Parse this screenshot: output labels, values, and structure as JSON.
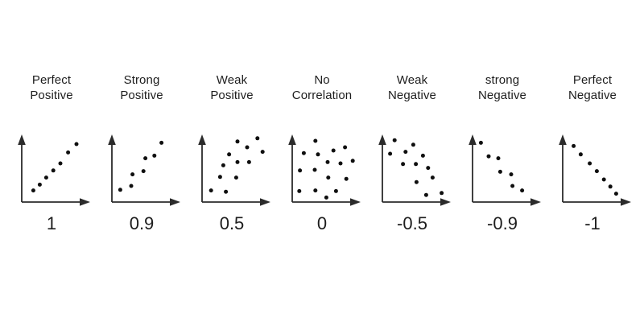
{
  "figure": {
    "background_color": "#ffffff",
    "text_color": "#1d1d1d",
    "axis_color": "#2b2b2b",
    "dot_color": "#0f0f0f",
    "description_units": "point coordinates are relative 0-100 units from each plot's axis origin (x right, y up); no tick labels or gridlines are shown"
  },
  "chart_data": [
    {
      "type": "scatter",
      "title": "Perfect Positive",
      "title_lines": [
        "Perfect",
        "Positive"
      ],
      "coefficient_label": "1",
      "correlation": 1,
      "x_range": [
        0,
        100
      ],
      "y_range": [
        0,
        100
      ],
      "points": [
        [
          18,
          18
        ],
        [
          28,
          27
        ],
        [
          38,
          38
        ],
        [
          49,
          49
        ],
        [
          60,
          60
        ],
        [
          72,
          77
        ],
        [
          85,
          90
        ]
      ]
    },
    {
      "type": "scatter",
      "title": "Strong Positive",
      "title_lines": [
        "Strong",
        "Positive"
      ],
      "coefficient_label": "0.9",
      "correlation": 0.9,
      "x_range": [
        0,
        100
      ],
      "y_range": [
        0,
        100
      ],
      "points": [
        [
          13,
          19
        ],
        [
          30,
          25
        ],
        [
          32,
          43
        ],
        [
          49,
          48
        ],
        [
          52,
          68
        ],
        [
          66,
          72
        ],
        [
          77,
          92
        ]
      ]
    },
    {
      "type": "scatter",
      "title": "Weak Positive",
      "title_lines": [
        "Weak",
        "Positive"
      ],
      "coefficient_label": "0.5",
      "correlation": 0.5,
      "x_range": [
        0,
        100
      ],
      "y_range": [
        0,
        100
      ],
      "points": [
        [
          14,
          18
        ],
        [
          37,
          16
        ],
        [
          28,
          39
        ],
        [
          33,
          57
        ],
        [
          53,
          38
        ],
        [
          42,
          74
        ],
        [
          55,
          62
        ],
        [
          73,
          62
        ],
        [
          55,
          94
        ],
        [
          70,
          85
        ],
        [
          86,
          99
        ],
        [
          94,
          78
        ]
      ]
    },
    {
      "type": "scatter",
      "title": "No Correlation",
      "title_lines": [
        "No",
        "Correlation"
      ],
      "coefficient_label": "0",
      "correlation": 0,
      "x_range": [
        0,
        100
      ],
      "y_range": [
        0,
        100
      ],
      "points": [
        [
          36,
          95
        ],
        [
          18,
          76
        ],
        [
          64,
          80
        ],
        [
          82,
          85
        ],
        [
          40,
          74
        ],
        [
          55,
          62
        ],
        [
          75,
          60
        ],
        [
          94,
          64
        ],
        [
          12,
          49
        ],
        [
          35,
          50
        ],
        [
          56,
          38
        ],
        [
          84,
          36
        ],
        [
          11,
          17
        ],
        [
          36,
          18
        ],
        [
          68,
          17
        ],
        [
          53,
          7
        ]
      ]
    },
    {
      "type": "scatter",
      "title": "Weak Negative",
      "title_lines": [
        "Weak",
        "Negative"
      ],
      "coefficient_label": "-0.5",
      "correlation": -0.5,
      "x_range": [
        0,
        100
      ],
      "y_range": [
        0,
        100
      ],
      "points": [
        [
          19,
          96
        ],
        [
          48,
          89
        ],
        [
          12,
          75
        ],
        [
          36,
          78
        ],
        [
          63,
          72
        ],
        [
          32,
          59
        ],
        [
          52,
          59
        ],
        [
          71,
          53
        ],
        [
          78,
          38
        ],
        [
          53,
          31
        ],
        [
          68,
          11
        ],
        [
          92,
          14
        ]
      ]
    },
    {
      "type": "scatter",
      "title": "strong Negative",
      "title_lines": [
        "strong",
        "Negative"
      ],
      "coefficient_label": "-0.9",
      "correlation": -0.9,
      "x_range": [
        0,
        100
      ],
      "y_range": [
        0,
        100
      ],
      "points": [
        [
          13,
          92
        ],
        [
          25,
          71
        ],
        [
          40,
          68
        ],
        [
          43,
          47
        ],
        [
          60,
          43
        ],
        [
          62,
          25
        ],
        [
          77,
          18
        ]
      ]
    },
    {
      "type": "scatter",
      "title": "Perfect Negative",
      "title_lines": [
        "Perfect",
        "Negative"
      ],
      "coefficient_label": "-1",
      "correlation": -1,
      "x_range": [
        0,
        100
      ],
      "y_range": [
        0,
        100
      ],
      "points": [
        [
          17,
          87
        ],
        [
          28,
          74
        ],
        [
          42,
          60
        ],
        [
          53,
          48
        ],
        [
          64,
          35
        ],
        [
          74,
          24
        ],
        [
          83,
          13
        ]
      ]
    }
  ]
}
